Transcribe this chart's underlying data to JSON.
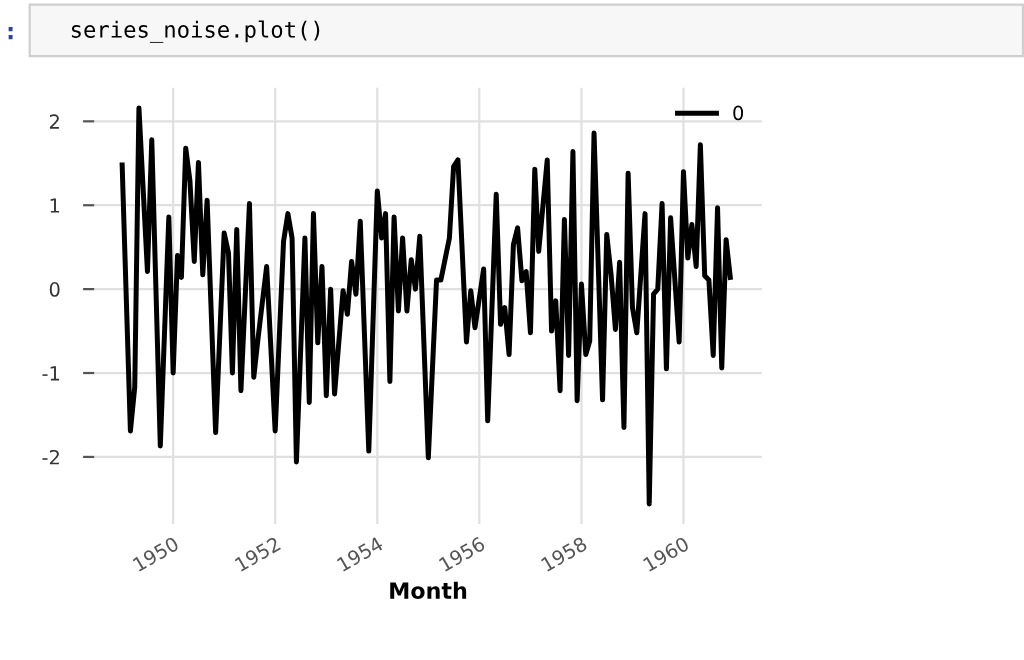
{
  "chart_data": {
    "type": "line",
    "annotations": [
      ":",
      "series_noise.plot()"
    ],
    "xlabel": "Month",
    "x": [
      "1949-01",
      "1949-03",
      "1949-04",
      "1949-05",
      "1949-07",
      "1949-08",
      "1949-10",
      "1949-12",
      "1950-01",
      "1950-02",
      "1950-03",
      "1950-04",
      "1950-05",
      "1950-06",
      "1950-07",
      "1950-08",
      "1950-09",
      "1950-11",
      "1951-01",
      "1951-02",
      "1951-03",
      "1951-04",
      "1951-05",
      "1951-07",
      "1951-08",
      "1951-09",
      "1951-11",
      "1952-01",
      "1952-03",
      "1952-04",
      "1952-05",
      "1952-06",
      "1952-08",
      "1952-09",
      "1952-10",
      "1952-11",
      "1952-12",
      "1953-01",
      "1953-02",
      "1953-03",
      "1953-05",
      "1953-06",
      "1953-07",
      "1953-08",
      "1953-09",
      "1953-11",
      "1954-01",
      "1954-02",
      "1954-03",
      "1954-04",
      "1954-05",
      "1954-06",
      "1954-07",
      "1954-08",
      "1954-09",
      "1954-10",
      "1954-11",
      "1955-01",
      "1955-03",
      "1955-04",
      "1955-06",
      "1955-07",
      "1955-08",
      "1955-10",
      "1955-11",
      "1955-12",
      "1956-02",
      "1956-03",
      "1956-05",
      "1956-06",
      "1956-07",
      "1956-08",
      "1956-09",
      "1956-10",
      "1956-11",
      "1956-12",
      "1957-01",
      "1957-02",
      "1957-03",
      "1957-05",
      "1957-06",
      "1957-07",
      "1957-08",
      "1957-09",
      "1957-10",
      "1957-11",
      "1957-12",
      "1958-01",
      "1958-02",
      "1958-03",
      "1958-04",
      "1958-06",
      "1958-07",
      "1958-08",
      "1958-09",
      "1958-10",
      "1958-11",
      "1958-12",
      "1959-01",
      "1959-02",
      "1959-04",
      "1959-05",
      "1959-06",
      "1959-07",
      "1959-08",
      "1959-09",
      "1959-10",
      "1959-12",
      "1960-01",
      "1960-02",
      "1960-03",
      "1960-04",
      "1960-05",
      "1960-06",
      "1960-07",
      "1960-08",
      "1960-09",
      "1960-10",
      "1960-11",
      "1960-12"
    ],
    "series": [
      {
        "name": "0",
        "color": "#000000",
        "values": [
          1.48,
          -1.69,
          -1.17,
          2.16,
          0.21,
          1.78,
          -1.87,
          0.86,
          -1.0,
          0.4,
          0.14,
          1.68,
          1.29,
          0.33,
          1.51,
          0.17,
          1.06,
          -1.71,
          0.67,
          0.43,
          -1.0,
          0.71,
          -1.21,
          1.02,
          -1.05,
          -0.58,
          0.27,
          -1.69,
          0.57,
          0.9,
          0.61,
          -2.06,
          0.61,
          -1.35,
          0.9,
          -0.64,
          0.27,
          -1.27,
          0.0,
          -1.25,
          -0.02,
          -0.3,
          0.33,
          -0.06,
          0.81,
          -1.93,
          1.17,
          0.61,
          0.9,
          -1.1,
          0.86,
          -0.26,
          0.61,
          -0.26,
          0.35,
          0.0,
          0.63,
          -2.01,
          0.11,
          0.11,
          0.61,
          1.46,
          1.54,
          -0.63,
          -0.02,
          -0.46,
          0.24,
          -1.57,
          1.13,
          -0.42,
          -0.22,
          -0.78,
          0.53,
          0.73,
          0.1,
          0.21,
          -0.52,
          1.43,
          0.45,
          1.54,
          -0.5,
          -0.14,
          -1.21,
          0.83,
          -0.79,
          1.64,
          -1.33,
          0.06,
          -0.78,
          -0.62,
          1.86,
          -1.32,
          0.65,
          0.17,
          -0.48,
          0.32,
          -1.65,
          1.38,
          -0.22,
          -0.52,
          0.9,
          -2.56,
          -0.06,
          0.0,
          1.02,
          -0.95,
          0.85,
          -0.63,
          1.4,
          0.37,
          0.77,
          0.27,
          1.72,
          0.16,
          0.11,
          -0.79,
          0.97,
          -0.94,
          0.59,
          0.14
        ]
      }
    ],
    "xlim": [
      "1948-06-15",
      "1961-07-15"
    ],
    "xticks": [
      {
        "value": "1950-01-01",
        "label": "1950"
      },
      {
        "value": "1952-01-01",
        "label": "1952"
      },
      {
        "value": "1954-01-01",
        "label": "1954"
      },
      {
        "value": "1956-01-01",
        "label": "1956"
      },
      {
        "value": "1958-01-01",
        "label": "1958"
      },
      {
        "value": "1960-01-01",
        "label": "1960"
      }
    ],
    "ylim": [
      -2.8,
      2.4
    ],
    "yticks": [
      -2,
      -1,
      0,
      1,
      2
    ],
    "grid": true,
    "legend": "top right",
    "line_style": "solid",
    "marker": "none"
  }
}
